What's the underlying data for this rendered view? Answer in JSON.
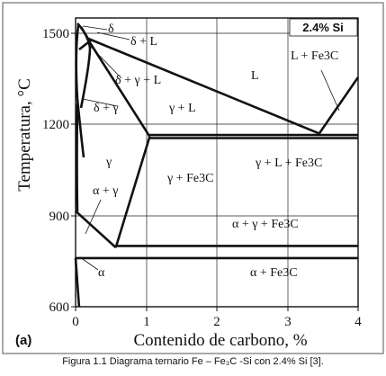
{
  "chart_data": {
    "type": "phase-diagram",
    "panel_label": "(a)",
    "annotation": "2.4% Si",
    "xlabel": "Contenido de carbono, %",
    "ylabel": "Temperatura, °C",
    "xlim": [
      0,
      4
    ],
    "ylim": [
      600,
      1550
    ],
    "x_ticks": [
      "0",
      "1",
      "2",
      "3",
      "4"
    ],
    "y_ticks": [
      "600",
      "900",
      "1200",
      "1500"
    ],
    "grid": true,
    "regions": [
      {
        "name": "delta",
        "label": "δ"
      },
      {
        "name": "delta-liquid",
        "label": "δ + L"
      },
      {
        "name": "delta-gamma-liquid",
        "label": "δ + γ + L"
      },
      {
        "name": "delta-gamma",
        "label": "δ + γ"
      },
      {
        "name": "gamma-liquid",
        "label": "γ + L"
      },
      {
        "name": "liquid",
        "label": "L"
      },
      {
        "name": "liquid-cementite",
        "label": "L + Fe3C"
      },
      {
        "name": "gamma",
        "label": "γ"
      },
      {
        "name": "gamma-cementite",
        "label": "γ + Fe3C"
      },
      {
        "name": "gamma-liquid-cementite",
        "label": "γ + L + Fe3C"
      },
      {
        "name": "alpha-gamma",
        "label": "α + γ"
      },
      {
        "name": "alpha-gamma-cementite",
        "label": "α + γ + Fe3C"
      },
      {
        "name": "alpha",
        "label": "α"
      },
      {
        "name": "alpha-cementite",
        "label": "α + Fe3C"
      }
    ],
    "lines": [
      {
        "name": "liquidus-austenite",
        "points": [
          [
            0.15,
            1485
          ],
          [
            3.45,
            1170
          ]
        ]
      },
      {
        "name": "liquidus-cementite",
        "points": [
          [
            3.45,
            1170
          ],
          [
            4.0,
            1355
          ]
        ]
      },
      {
        "name": "eutectic-upper",
        "points": [
          [
            1.05,
            1165
          ],
          [
            4.0,
            1165
          ]
        ]
      },
      {
        "name": "eutectic-lower",
        "points": [
          [
            1.05,
            1155
          ],
          [
            4.0,
            1155
          ]
        ]
      },
      {
        "name": "solidus",
        "points": [
          [
            0.2,
            1470
          ],
          [
            1.05,
            1160
          ]
        ]
      },
      {
        "name": "acm-line",
        "points": [
          [
            1.05,
            1160
          ],
          [
            0.57,
            795
          ]
        ]
      },
      {
        "name": "a3-line",
        "points": [
          [
            0.0,
            915
          ],
          [
            0.57,
            795
          ]
        ]
      },
      {
        "name": "eutectoid-upper",
        "points": [
          [
            0.57,
            800
          ],
          [
            4.0,
            800
          ]
        ]
      },
      {
        "name": "eutectoid-lower",
        "points": [
          [
            0.0,
            760
          ],
          [
            4.0,
            760
          ]
        ]
      },
      {
        "name": "alpha-solvus",
        "points": [
          [
            0.05,
            600
          ],
          [
            0.0,
            760
          ]
        ]
      }
    ]
  },
  "caption": "Figura 1.1 Diagrama ternario Fe – Fe₃C -Si con 2.4% Si [3]."
}
